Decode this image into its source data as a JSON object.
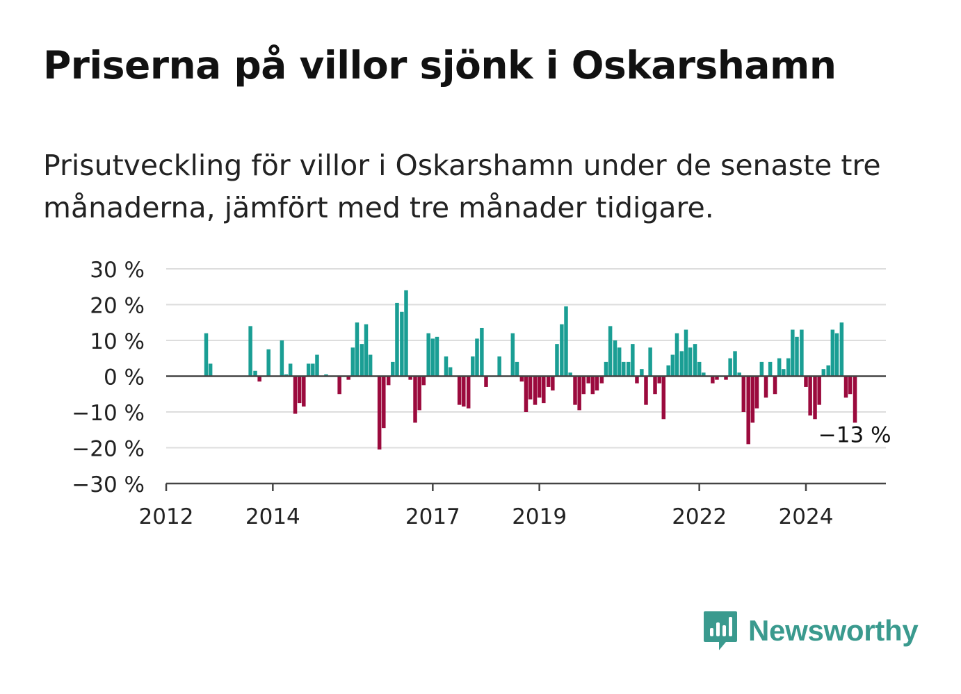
{
  "title": "Priserna på villor sjönk i Oskarshamn",
  "subtitle": "Prisutveckling för villor i Oskarshamn under de senaste tre månaderna, jämfört med tre månader tidigare.",
  "colors": {
    "positive": "#1a9e94",
    "negative": "#9b0a3d",
    "grid": "#dddddd",
    "axis": "#444444",
    "brand": "#3a9a8e"
  },
  "brand": {
    "name": "Newsworthy",
    "icon": "bar-chart-speech-bubble-icon"
  },
  "chart_data": {
    "type": "bar",
    "ylabel": "",
    "xlabel": "",
    "ylim": [
      -30,
      30
    ],
    "y_ticks": [
      30,
      20,
      10,
      0,
      -10,
      -20,
      -30
    ],
    "y_tick_labels": [
      "30 %",
      "20 %",
      "10 %",
      "0 %",
      "−10 %",
      "−20 %",
      "−30 %"
    ],
    "x_range": [
      2012.0,
      2025.5
    ],
    "x_ticks": [
      2012,
      2014,
      2017,
      2019,
      2022,
      2024
    ],
    "x_tick_labels": [
      "2012",
      "2014",
      "2017",
      "2019",
      "2022",
      "2024"
    ],
    "grid": true,
    "annotation": {
      "text": "−13 %",
      "value": -13
    },
    "bars": [
      {
        "t": 2012.75,
        "v": 12
      },
      {
        "t": 2012.83,
        "v": 3.5
      },
      {
        "t": 2013.58,
        "v": 14
      },
      {
        "t": 2013.67,
        "v": 1.5
      },
      {
        "t": 2013.75,
        "v": -1.5
      },
      {
        "t": 2013.92,
        "v": 7.5
      },
      {
        "t": 2014.17,
        "v": 10
      },
      {
        "t": 2014.25,
        "v": 0.5
      },
      {
        "t": 2014.33,
        "v": 3.5
      },
      {
        "t": 2014.42,
        "v": -10.5
      },
      {
        "t": 2014.5,
        "v": -7.5
      },
      {
        "t": 2014.58,
        "v": -8.5
      },
      {
        "t": 2014.67,
        "v": 3.5
      },
      {
        "t": 2014.75,
        "v": 3.5
      },
      {
        "t": 2014.83,
        "v": 6
      },
      {
        "t": 2015.0,
        "v": 0.5
      },
      {
        "t": 2015.25,
        "v": -5
      },
      {
        "t": 2015.42,
        "v": -1
      },
      {
        "t": 2015.5,
        "v": 8
      },
      {
        "t": 2015.58,
        "v": 15
      },
      {
        "t": 2015.67,
        "v": 9
      },
      {
        "t": 2015.75,
        "v": 14.5
      },
      {
        "t": 2015.83,
        "v": 6
      },
      {
        "t": 2016.0,
        "v": -20.5
      },
      {
        "t": 2016.08,
        "v": -14.5
      },
      {
        "t": 2016.17,
        "v": -2.5
      },
      {
        "t": 2016.25,
        "v": 4
      },
      {
        "t": 2016.33,
        "v": 20.5
      },
      {
        "t": 2016.42,
        "v": 18
      },
      {
        "t": 2016.5,
        "v": 24
      },
      {
        "t": 2016.58,
        "v": -1
      },
      {
        "t": 2016.67,
        "v": -13
      },
      {
        "t": 2016.75,
        "v": -9.5
      },
      {
        "t": 2016.83,
        "v": -2.5
      },
      {
        "t": 2016.92,
        "v": 12
      },
      {
        "t": 2017.0,
        "v": 10.5
      },
      {
        "t": 2017.08,
        "v": 11
      },
      {
        "t": 2017.25,
        "v": 5.5
      },
      {
        "t": 2017.33,
        "v": 2.5
      },
      {
        "t": 2017.5,
        "v": -8
      },
      {
        "t": 2017.58,
        "v": -8.5
      },
      {
        "t": 2017.67,
        "v": -9
      },
      {
        "t": 2017.75,
        "v": 5.5
      },
      {
        "t": 2017.83,
        "v": 10.5
      },
      {
        "t": 2017.92,
        "v": 13.5
      },
      {
        "t": 2018.0,
        "v": -3
      },
      {
        "t": 2018.25,
        "v": 5.5
      },
      {
        "t": 2018.5,
        "v": 12
      },
      {
        "t": 2018.58,
        "v": 4
      },
      {
        "t": 2018.67,
        "v": -1.5
      },
      {
        "t": 2018.75,
        "v": -10
      },
      {
        "t": 2018.83,
        "v": -6.5
      },
      {
        "t": 2018.92,
        "v": -8
      },
      {
        "t": 2019.0,
        "v": -6
      },
      {
        "t": 2019.08,
        "v": -7.5
      },
      {
        "t": 2019.17,
        "v": -3
      },
      {
        "t": 2019.25,
        "v": -4
      },
      {
        "t": 2019.33,
        "v": 9
      },
      {
        "t": 2019.42,
        "v": 14.5
      },
      {
        "t": 2019.5,
        "v": 19.5
      },
      {
        "t": 2019.58,
        "v": 1
      },
      {
        "t": 2019.67,
        "v": -8
      },
      {
        "t": 2019.75,
        "v": -9.5
      },
      {
        "t": 2019.83,
        "v": -5
      },
      {
        "t": 2019.92,
        "v": -2
      },
      {
        "t": 2020.0,
        "v": -5
      },
      {
        "t": 2020.08,
        "v": -4
      },
      {
        "t": 2020.17,
        "v": -2
      },
      {
        "t": 2020.25,
        "v": 4
      },
      {
        "t": 2020.33,
        "v": 14
      },
      {
        "t": 2020.42,
        "v": 10
      },
      {
        "t": 2020.5,
        "v": 8
      },
      {
        "t": 2020.58,
        "v": 4
      },
      {
        "t": 2020.67,
        "v": 4
      },
      {
        "t": 2020.75,
        "v": 9
      },
      {
        "t": 2020.83,
        "v": -2
      },
      {
        "t": 2020.92,
        "v": 2
      },
      {
        "t": 2021.0,
        "v": -8
      },
      {
        "t": 2021.08,
        "v": 8
      },
      {
        "t": 2021.17,
        "v": -5
      },
      {
        "t": 2021.25,
        "v": -2
      },
      {
        "t": 2021.33,
        "v": -12
      },
      {
        "t": 2021.42,
        "v": 3
      },
      {
        "t": 2021.5,
        "v": 6
      },
      {
        "t": 2021.58,
        "v": 12
      },
      {
        "t": 2021.67,
        "v": 7
      },
      {
        "t": 2021.75,
        "v": 13
      },
      {
        "t": 2021.83,
        "v": 8
      },
      {
        "t": 2021.92,
        "v": 9
      },
      {
        "t": 2022.0,
        "v": 4
      },
      {
        "t": 2022.08,
        "v": 1
      },
      {
        "t": 2022.25,
        "v": -2
      },
      {
        "t": 2022.33,
        "v": -1
      },
      {
        "t": 2022.5,
        "v": -1
      },
      {
        "t": 2022.58,
        "v": 5
      },
      {
        "t": 2022.67,
        "v": 7
      },
      {
        "t": 2022.75,
        "v": 1
      },
      {
        "t": 2022.83,
        "v": -10
      },
      {
        "t": 2022.92,
        "v": -19
      },
      {
        "t": 2023.0,
        "v": -13
      },
      {
        "t": 2023.08,
        "v": -9
      },
      {
        "t": 2023.17,
        "v": 4
      },
      {
        "t": 2023.25,
        "v": -6
      },
      {
        "t": 2023.33,
        "v": 4
      },
      {
        "t": 2023.42,
        "v": -5
      },
      {
        "t": 2023.5,
        "v": 5
      },
      {
        "t": 2023.58,
        "v": 2
      },
      {
        "t": 2023.67,
        "v": 5
      },
      {
        "t": 2023.75,
        "v": 13
      },
      {
        "t": 2023.83,
        "v": 11
      },
      {
        "t": 2023.92,
        "v": 13
      },
      {
        "t": 2024.0,
        "v": -3
      },
      {
        "t": 2024.08,
        "v": -11
      },
      {
        "t": 2024.17,
        "v": -12
      },
      {
        "t": 2024.25,
        "v": -8
      },
      {
        "t": 2024.33,
        "v": 2
      },
      {
        "t": 2024.42,
        "v": 3
      },
      {
        "t": 2024.5,
        "v": 13
      },
      {
        "t": 2024.58,
        "v": 12
      },
      {
        "t": 2024.67,
        "v": 15
      },
      {
        "t": 2024.75,
        "v": -6
      },
      {
        "t": 2024.83,
        "v": -5
      },
      {
        "t": 2024.92,
        "v": -13
      }
    ]
  }
}
